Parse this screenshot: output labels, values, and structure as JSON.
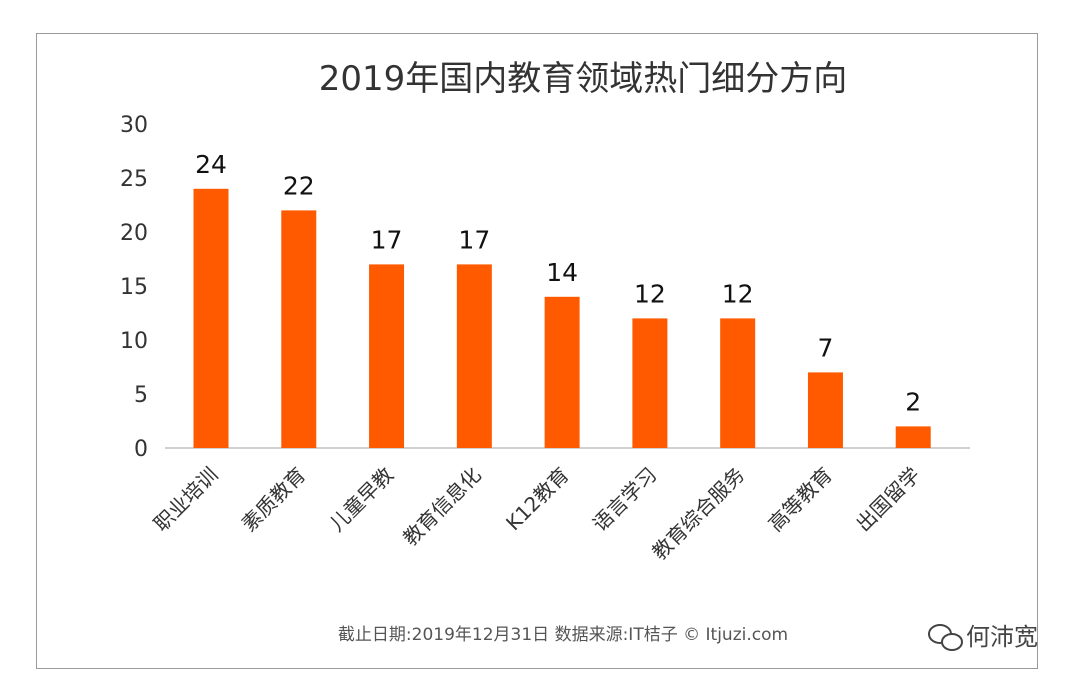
{
  "chart_data": {
    "type": "bar",
    "title": "2019年国内教育领域热门细分方向",
    "categories": [
      "职业培训",
      "素质教育",
      "儿童早教",
      "教育信息化",
      "K12教育",
      "语言学习",
      "教育综合服务",
      "高等教育",
      "出国留学"
    ],
    "values": [
      24,
      22,
      17,
      17,
      14,
      12,
      12,
      7,
      2
    ],
    "yticks": [
      0,
      5,
      10,
      15,
      20,
      25,
      30
    ],
    "ylim": [
      0,
      30
    ],
    "xlabel": "",
    "ylabel": "",
    "bar_color": "#ff5a00",
    "grid": false,
    "legend": "none",
    "source": "截止日期:2019年12月31日    数据来源:IT桔子 © Itjuzi.com"
  },
  "watermark": {
    "text": "何沛宽",
    "icon": "wechat-icon"
  }
}
